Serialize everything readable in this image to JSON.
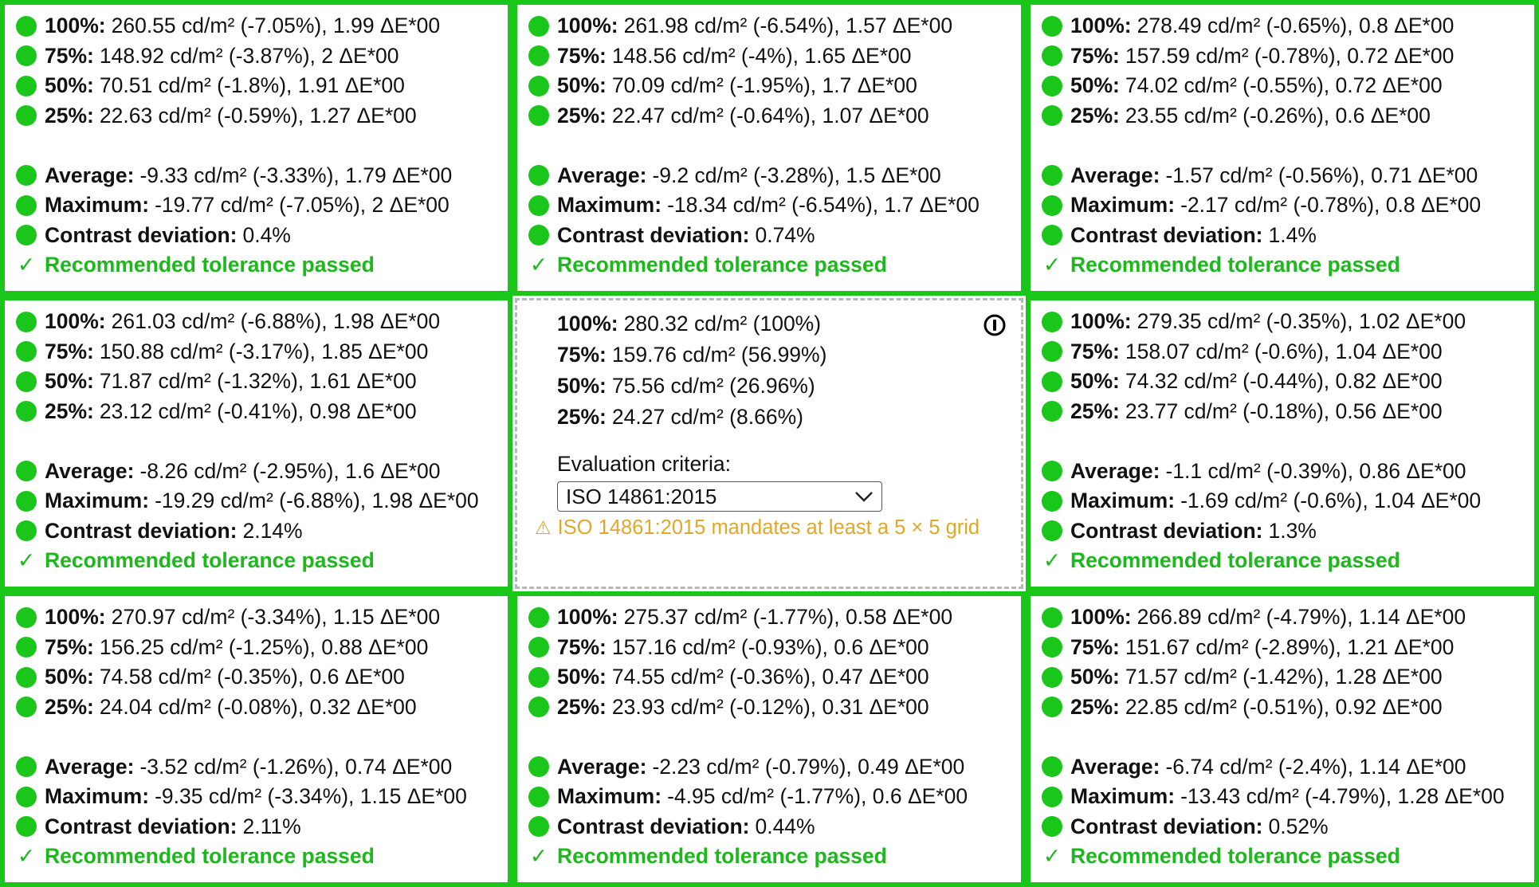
{
  "colors": {
    "pass": "#19c619",
    "warning": "#e0a82a",
    "ref_border": "#b8b8b8"
  },
  "labels": {
    "p100": "100%:",
    "p75": "75%:",
    "p50": "50%:",
    "p25": "25%:",
    "average": "Average:",
    "maximum": "Maximum:",
    "contrast": "Contrast deviation:",
    "passed": "Recommended tolerance passed",
    "check_glyph": "✓"
  },
  "cells": [
    {
      "p100": "260.55 cd/m² (-7.05%), 1.99 ΔE*00",
      "p75": "148.92 cd/m² (-3.87%), 2 ΔE*00",
      "p50": "70.51 cd/m² (-1.8%), 1.91 ΔE*00",
      "p25": "22.63 cd/m² (-0.59%), 1.27 ΔE*00",
      "average": "-9.33 cd/m² (-3.33%), 1.79 ΔE*00",
      "maximum": "-19.77 cd/m² (-7.05%), 2 ΔE*00",
      "contrast": "0.4%"
    },
    {
      "p100": "261.98 cd/m² (-6.54%), 1.57 ΔE*00",
      "p75": "148.56 cd/m² (-4%), 1.65 ΔE*00",
      "p50": "70.09 cd/m² (-1.95%), 1.7 ΔE*00",
      "p25": "22.47 cd/m² (-0.64%), 1.07 ΔE*00",
      "average": "-9.2 cd/m² (-3.28%), 1.5 ΔE*00",
      "maximum": "-18.34 cd/m² (-6.54%), 1.7 ΔE*00",
      "contrast": "0.74%"
    },
    {
      "p100": "278.49 cd/m² (-0.65%), 0.8 ΔE*00",
      "p75": "157.59 cd/m² (-0.78%), 0.72 ΔE*00",
      "p50": "74.02 cd/m² (-0.55%), 0.72 ΔE*00",
      "p25": "23.55 cd/m² (-0.26%), 0.6 ΔE*00",
      "average": "-1.57 cd/m² (-0.56%), 0.71 ΔE*00",
      "maximum": "-2.17 cd/m² (-0.78%), 0.8 ΔE*00",
      "contrast": "1.4%"
    },
    {
      "p100": "261.03 cd/m² (-6.88%), 1.98 ΔE*00",
      "p75": "150.88 cd/m² (-3.17%), 1.85 ΔE*00",
      "p50": "71.87 cd/m² (-1.32%), 1.61 ΔE*00",
      "p25": "23.12 cd/m² (-0.41%), 0.98 ΔE*00",
      "average": "-8.26 cd/m² (-2.95%), 1.6 ΔE*00",
      "maximum": "-19.29 cd/m² (-6.88%), 1.98 ΔE*00",
      "contrast": "2.14%"
    },
    {
      "p100": "279.35 cd/m² (-0.35%), 1.02 ΔE*00",
      "p75": "158.07 cd/m² (-0.6%), 1.04 ΔE*00",
      "p50": "74.32 cd/m² (-0.44%), 0.82 ΔE*00",
      "p25": "23.77 cd/m² (-0.18%), 0.56 ΔE*00",
      "average": "-1.1 cd/m² (-0.39%), 0.86 ΔE*00",
      "maximum": "-1.69 cd/m² (-0.6%), 1.04 ΔE*00",
      "contrast": "1.3%"
    },
    {
      "p100": "270.97 cd/m² (-3.34%), 1.15 ΔE*00",
      "p75": "156.25 cd/m² (-1.25%), 0.88 ΔE*00",
      "p50": "74.58 cd/m² (-0.35%), 0.6 ΔE*00",
      "p25": "24.04 cd/m² (-0.08%), 0.32 ΔE*00",
      "average": "-3.52 cd/m² (-1.26%), 0.74 ΔE*00",
      "maximum": "-9.35 cd/m² (-3.34%), 1.15 ΔE*00",
      "contrast": "2.11%"
    },
    {
      "p100": "275.37 cd/m² (-1.77%), 0.58 ΔE*00",
      "p75": "157.16 cd/m² (-0.93%), 0.6 ΔE*00",
      "p50": "74.55 cd/m² (-0.36%), 0.47 ΔE*00",
      "p25": "23.93 cd/m² (-0.12%), 0.31 ΔE*00",
      "average": "-2.23 cd/m² (-0.79%), 0.49 ΔE*00",
      "maximum": "-4.95 cd/m² (-1.77%), 0.6 ΔE*00",
      "contrast": "0.44%"
    },
    {
      "p100": "266.89 cd/m² (-4.79%), 1.14 ΔE*00",
      "p75": "151.67 cd/m² (-2.89%), 1.21 ΔE*00",
      "p50": "71.57 cd/m² (-1.42%), 1.28 ΔE*00",
      "p25": "22.85 cd/m² (-0.51%), 0.92 ΔE*00",
      "average": "-6.74 cd/m² (-2.4%), 1.14 ΔE*00",
      "maximum": "-13.43 cd/m² (-4.79%), 1.28 ΔE*00",
      "contrast": "0.52%"
    }
  ],
  "reference": {
    "p100": "280.32 cd/m² (100%)",
    "p75": "159.76 cd/m² (56.99%)",
    "p50": "75.56 cd/m² (26.96%)",
    "p25": "24.27 cd/m² (8.66%)",
    "criteria_label": "Evaluation criteria:",
    "criteria_value": "ISO 14861:2015",
    "warning_glyph": "⚠",
    "warning": "ISO 14861:2015 mandates at least a 5 × 5 grid",
    "info_icon": "info-icon"
  }
}
